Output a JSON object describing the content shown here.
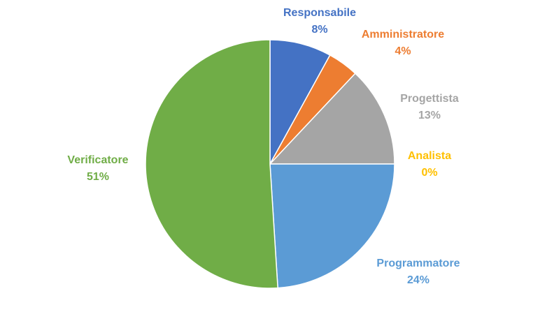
{
  "chart_data": {
    "type": "pie",
    "title": "",
    "slices": [
      {
        "label": "Responsabile",
        "value": 8,
        "display": "8%",
        "color": "#4472C4"
      },
      {
        "label": "Amministratore",
        "value": 4,
        "display": "4%",
        "color": "#ED7D31"
      },
      {
        "label": "Progettista",
        "value": 13,
        "display": "13%",
        "color": "#A5A5A5"
      },
      {
        "label": "Analista",
        "value": 0,
        "display": "0%",
        "color": "#FFC000"
      },
      {
        "label": "Programmatore",
        "value": 24,
        "display": "24%",
        "color": "#5B9BD5"
      },
      {
        "label": "Verificatore",
        "value": 51,
        "display": "51%",
        "color": "#70AD47"
      }
    ],
    "legend": "none",
    "data_labels": "outside"
  }
}
